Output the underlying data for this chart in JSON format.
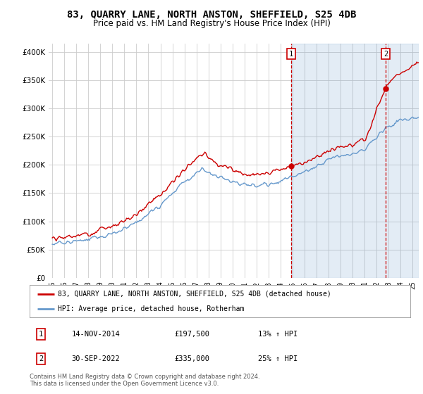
{
  "title": "83, QUARRY LANE, NORTH ANSTON, SHEFFIELD, S25 4DB",
  "subtitle": "Price paid vs. HM Land Registry's House Price Index (HPI)",
  "title_fontsize": 10,
  "subtitle_fontsize": 8.5,
  "ylabel_ticks": [
    "£0",
    "£50K",
    "£100K",
    "£150K",
    "£200K",
    "£250K",
    "£300K",
    "£350K",
    "£400K"
  ],
  "ylabel_values": [
    0,
    50000,
    100000,
    150000,
    200000,
    250000,
    300000,
    350000,
    400000
  ],
  "ylim": [
    0,
    415000
  ],
  "xlim_start": 1994.7,
  "xlim_end": 2025.5,
  "red_color": "#cc0000",
  "blue_color": "#6699cc",
  "blue_fill_color": "#ddeeff",
  "grid_color": "#cccccc",
  "bg_color": "#ffffff",
  "marker1_x": 2014.87,
  "marker1_y": 197500,
  "marker2_x": 2022.75,
  "marker2_y": 335000,
  "legend_red_label": "83, QUARRY LANE, NORTH ANSTON, SHEFFIELD, S25 4DB (detached house)",
  "legend_blue_label": "HPI: Average price, detached house, Rotherham",
  "note1_num": "1",
  "note1_date": "14-NOV-2014",
  "note1_price": "£197,500",
  "note1_change": "13% ↑ HPI",
  "note2_num": "2",
  "note2_date": "30-SEP-2022",
  "note2_price": "£335,000",
  "note2_change": "25% ↑ HPI",
  "footer": "Contains HM Land Registry data © Crown copyright and database right 2024.\nThis data is licensed under the Open Government Licence v3.0.",
  "xtick_years": [
    1995,
    1996,
    1997,
    1998,
    1999,
    2000,
    2001,
    2002,
    2003,
    2004,
    2005,
    2006,
    2007,
    2008,
    2009,
    2010,
    2011,
    2012,
    2013,
    2014,
    2015,
    2016,
    2017,
    2018,
    2019,
    2020,
    2021,
    2022,
    2023,
    2024,
    2025
  ],
  "xtick_labels": [
    "95",
    "96",
    "97",
    "98",
    "99",
    "00",
    "01",
    "02",
    "03",
    "04",
    "05",
    "06",
    "07",
    "08",
    "09",
    "10",
    "11",
    "12",
    "13",
    "14",
    "15",
    "16",
    "17",
    "18",
    "19",
    "20",
    "21",
    "22",
    "23",
    "24",
    "25"
  ]
}
